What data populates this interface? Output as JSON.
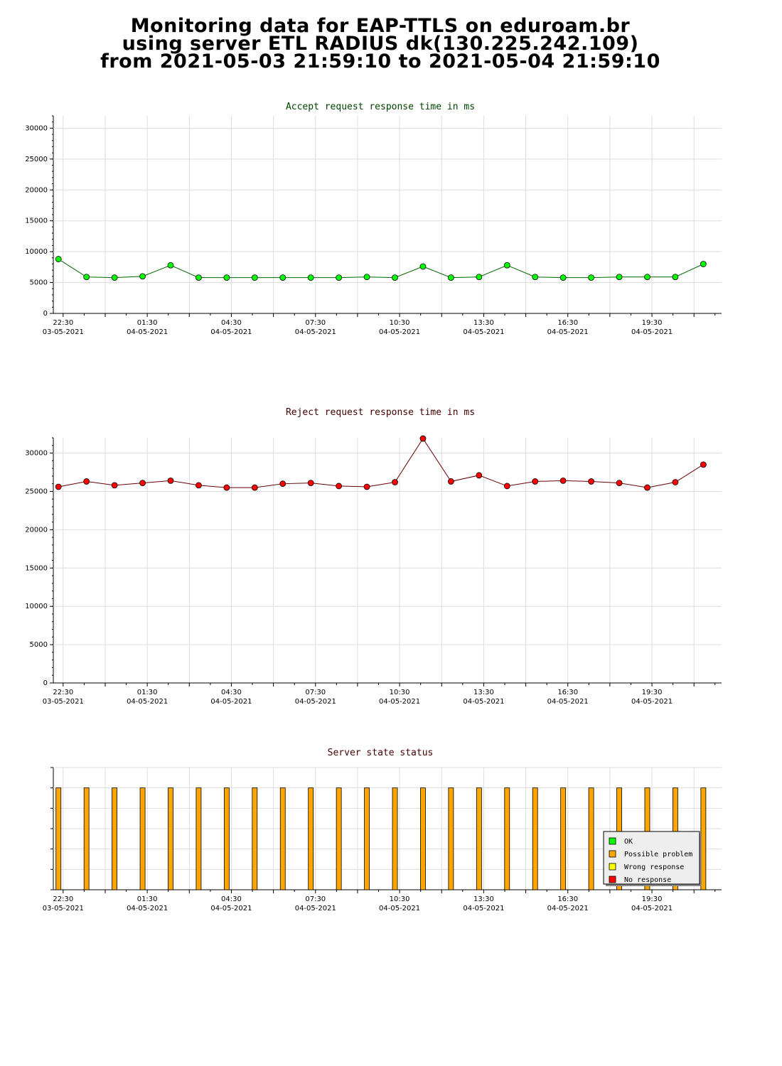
{
  "title": {
    "line1": "Monitoring data for EAP-TTLS on eduroam.br",
    "line2": "using server ETL RADIUS dk(130.225.242.109)",
    "line3": "from 2021-05-03 21:59:10 to 2021-05-04 21:59:10"
  },
  "colors": {
    "ok": "#00ff00",
    "possible_problem": "#ffa500",
    "wrong_response": "#ffff00",
    "no_response": "#ff0000",
    "accept_title": "#004400",
    "reject_title": "#440000",
    "grid": "#dddddd"
  },
  "x_ticks": [
    {
      "time": "22:30",
      "date": "03-05-2021"
    },
    {
      "time": "01:30",
      "date": "04-05-2021"
    },
    {
      "time": "04:30",
      "date": "04-05-2021"
    },
    {
      "time": "07:30",
      "date": "04-05-2021"
    },
    {
      "time": "10:30",
      "date": "04-05-2021"
    },
    {
      "time": "13:30",
      "date": "04-05-2021"
    },
    {
      "time": "16:30",
      "date": "04-05-2021"
    },
    {
      "time": "19:30",
      "date": "04-05-2021"
    }
  ],
  "chart_data": [
    {
      "type": "line",
      "title": "Accept request response time in ms",
      "x_range": [
        "2021-05-03 22:09",
        "2021-05-04 21:59"
      ],
      "ylim": [
        0,
        32000
      ],
      "y_ticks": [
        0,
        5000,
        10000,
        15000,
        20000,
        25000,
        30000
      ],
      "grid": true,
      "x": [
        "2021-05-03 22:20",
        "2021-05-03 23:20",
        "2021-05-04 00:20",
        "2021-05-04 01:20",
        "2021-05-04 02:20",
        "2021-05-04 03:20",
        "2021-05-04 04:20",
        "2021-05-04 05:20",
        "2021-05-04 06:20",
        "2021-05-04 07:20",
        "2021-05-04 08:20",
        "2021-05-04 09:20",
        "2021-05-04 10:20",
        "2021-05-04 11:20",
        "2021-05-04 12:20",
        "2021-05-04 13:20",
        "2021-05-04 14:20",
        "2021-05-04 15:20",
        "2021-05-04 16:20",
        "2021-05-04 17:20",
        "2021-05-04 18:20",
        "2021-05-04 19:20",
        "2021-05-04 20:20",
        "2021-05-04 21:20"
      ],
      "values": [
        8800,
        5900,
        5800,
        6000,
        7800,
        5800,
        5800,
        5800,
        5800,
        5800,
        5800,
        5900,
        5800,
        7600,
        5800,
        5900,
        7800,
        5900,
        5800,
        5800,
        5900,
        5900,
        5900,
        8000
      ],
      "marker_color": "#00ff00"
    },
    {
      "type": "line",
      "title": "Reject request response time in ms",
      "x_range": [
        "2021-05-03 22:09",
        "2021-05-04 21:59"
      ],
      "ylim": [
        0,
        32000
      ],
      "y_ticks": [
        0,
        5000,
        10000,
        15000,
        20000,
        25000,
        30000
      ],
      "grid": true,
      "x": [
        "2021-05-03 22:20",
        "2021-05-03 23:20",
        "2021-05-04 00:20",
        "2021-05-04 01:20",
        "2021-05-04 02:20",
        "2021-05-04 03:20",
        "2021-05-04 04:20",
        "2021-05-04 05:20",
        "2021-05-04 06:20",
        "2021-05-04 07:20",
        "2021-05-04 08:20",
        "2021-05-04 09:20",
        "2021-05-04 10:20",
        "2021-05-04 11:20",
        "2021-05-04 12:20",
        "2021-05-04 13:20",
        "2021-05-04 14:20",
        "2021-05-04 15:20",
        "2021-05-04 16:20",
        "2021-05-04 17:20",
        "2021-05-04 18:20",
        "2021-05-04 19:20",
        "2021-05-04 20:20",
        "2021-05-04 21:20"
      ],
      "values": [
        25600,
        26300,
        25800,
        26100,
        26400,
        25800,
        25500,
        25500,
        26000,
        26100,
        25700,
        25600,
        26200,
        31900,
        26300,
        27100,
        25700,
        26300,
        26400,
        26300,
        26100,
        25500,
        26200,
        28500
      ],
      "marker_color": "#ff0000"
    },
    {
      "type": "bar",
      "title": "Server state status",
      "x_range": [
        "2021-05-03 22:09",
        "2021-05-04 21:59"
      ],
      "grid": true,
      "x": [
        "2021-05-03 22:20",
        "2021-05-03 23:20",
        "2021-05-04 00:20",
        "2021-05-04 01:20",
        "2021-05-04 02:20",
        "2021-05-04 03:20",
        "2021-05-04 04:20",
        "2021-05-04 05:20",
        "2021-05-04 06:20",
        "2021-05-04 07:20",
        "2021-05-04 08:20",
        "2021-05-04 09:20",
        "2021-05-04 10:20",
        "2021-05-04 11:20",
        "2021-05-04 12:20",
        "2021-05-04 13:20",
        "2021-05-04 14:20",
        "2021-05-04 15:20",
        "2021-05-04 16:20",
        "2021-05-04 17:20",
        "2021-05-04 18:20",
        "2021-05-04 19:20",
        "2021-05-04 20:20",
        "2021-05-04 21:20"
      ],
      "states": [
        "Possible problem",
        "Possible problem",
        "Possible problem",
        "Possible problem",
        "Possible problem",
        "Possible problem",
        "Possible problem",
        "Possible problem",
        "Possible problem",
        "Possible problem",
        "Possible problem",
        "Possible problem",
        "Possible problem",
        "Possible problem",
        "Possible problem",
        "Possible problem",
        "Possible problem",
        "Possible problem",
        "Possible problem",
        "Possible problem",
        "Possible problem",
        "Possible problem",
        "Possible problem",
        "Possible problem"
      ],
      "legend": [
        {
          "label": "OK",
          "color": "#00ff00"
        },
        {
          "label": "Possible problem",
          "color": "#ffa500"
        },
        {
          "label": "Wrong response",
          "color": "#ffff00"
        },
        {
          "label": "No response",
          "color": "#ff0000"
        }
      ],
      "legend_position": "bottom-right"
    }
  ]
}
